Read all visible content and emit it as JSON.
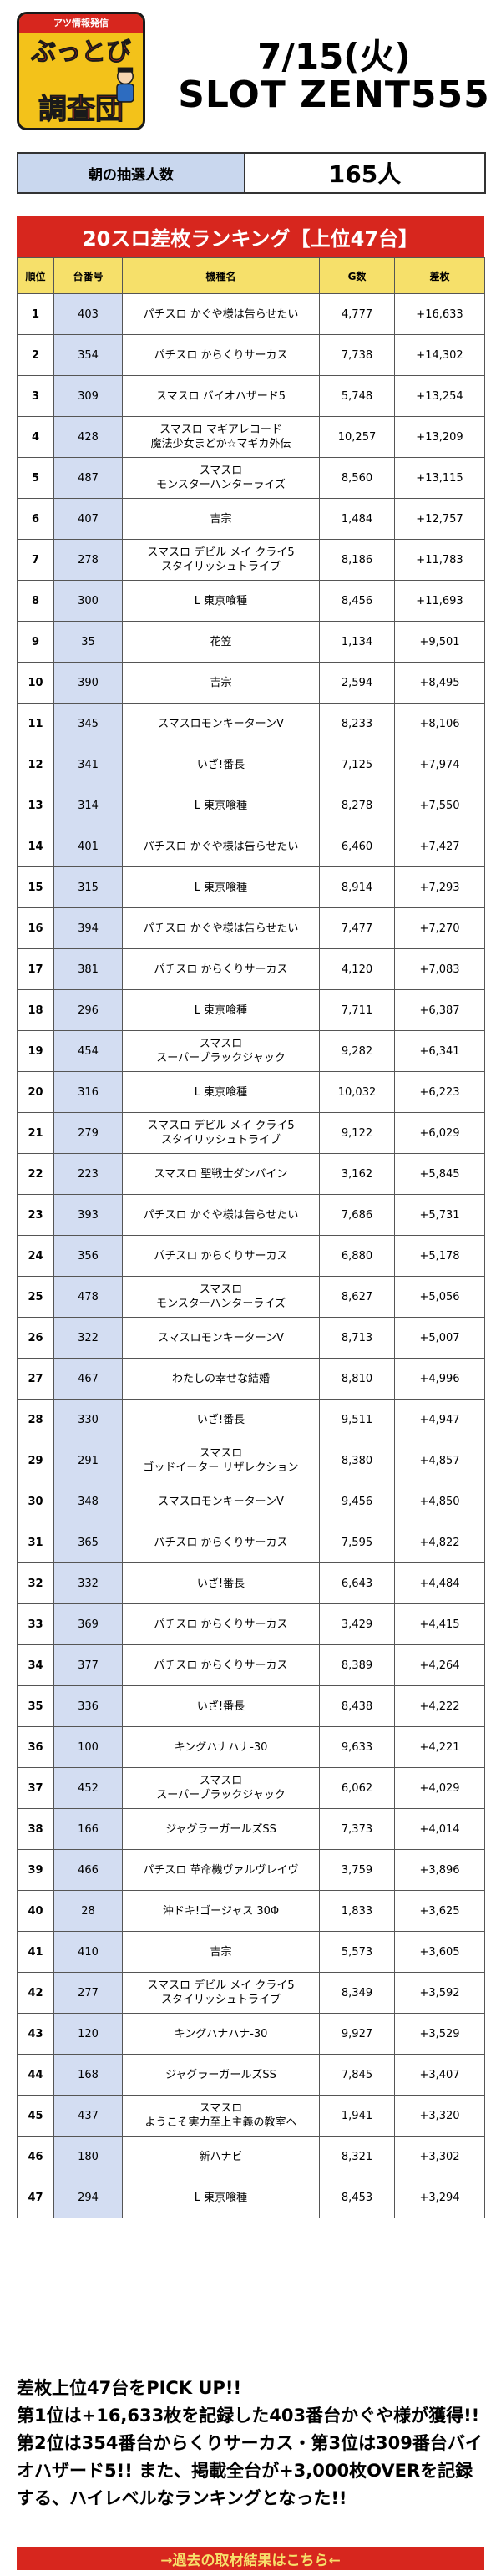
{
  "header": {
    "logo_top": "アツ情報発信",
    "logo_line1": "ぶっとび",
    "logo_line2": "調査団",
    "date": "7/15(火)",
    "store": "SLOT ZENT555"
  },
  "lottery": {
    "label": "朝の抽選人数",
    "value": "165人"
  },
  "ranking": {
    "title": "20スロ差枚ランキング【上位47台】",
    "columns": [
      "順位",
      "台番号",
      "機種名",
      "G数",
      "差枚"
    ],
    "rows": [
      {
        "rank": "1",
        "num": "403",
        "name": "パチスロ かぐや様は告らせたい",
        "g": "4,777",
        "diff": "+16,633"
      },
      {
        "rank": "2",
        "num": "354",
        "name": "パチスロ からくりサーカス",
        "g": "7,738",
        "diff": "+14,302"
      },
      {
        "rank": "3",
        "num": "309",
        "name": "スマスロ バイオハザード5",
        "g": "5,748",
        "diff": "+13,254"
      },
      {
        "rank": "4",
        "num": "428",
        "name": "スマスロ マギアレコード\n魔法少女まどか☆マギカ外伝",
        "g": "10,257",
        "diff": "+13,209"
      },
      {
        "rank": "5",
        "num": "487",
        "name": "スマスロ\nモンスターハンターライズ",
        "g": "8,560",
        "diff": "+13,115"
      },
      {
        "rank": "6",
        "num": "407",
        "name": "吉宗",
        "g": "1,484",
        "diff": "+12,757"
      },
      {
        "rank": "7",
        "num": "278",
        "name": "スマスロ デビル メイ クライ5\nスタイリッシュトライブ",
        "g": "8,186",
        "diff": "+11,783"
      },
      {
        "rank": "8",
        "num": "300",
        "name": "L 東京喰種",
        "g": "8,456",
        "diff": "+11,693"
      },
      {
        "rank": "9",
        "num": "35",
        "name": "花笠",
        "g": "1,134",
        "diff": "+9,501"
      },
      {
        "rank": "10",
        "num": "390",
        "name": "吉宗",
        "g": "2,594",
        "diff": "+8,495"
      },
      {
        "rank": "11",
        "num": "345",
        "name": "スマスロモンキーターンV",
        "g": "8,233",
        "diff": "+8,106"
      },
      {
        "rank": "12",
        "num": "341",
        "name": "いざ!番長",
        "g": "7,125",
        "diff": "+7,974"
      },
      {
        "rank": "13",
        "num": "314",
        "name": "L 東京喰種",
        "g": "8,278",
        "diff": "+7,550"
      },
      {
        "rank": "14",
        "num": "401",
        "name": "パチスロ かぐや様は告らせたい",
        "g": "6,460",
        "diff": "+7,427"
      },
      {
        "rank": "15",
        "num": "315",
        "name": "L 東京喰種",
        "g": "8,914",
        "diff": "+7,293"
      },
      {
        "rank": "16",
        "num": "394",
        "name": "パチスロ かぐや様は告らせたい",
        "g": "7,477",
        "diff": "+7,270"
      },
      {
        "rank": "17",
        "num": "381",
        "name": "パチスロ からくりサーカス",
        "g": "4,120",
        "diff": "+7,083"
      },
      {
        "rank": "18",
        "num": "296",
        "name": "L 東京喰種",
        "g": "7,711",
        "diff": "+6,387"
      },
      {
        "rank": "19",
        "num": "454",
        "name": "スマスロ\nスーパーブラックジャック",
        "g": "9,282",
        "diff": "+6,341"
      },
      {
        "rank": "20",
        "num": "316",
        "name": "L 東京喰種",
        "g": "10,032",
        "diff": "+6,223"
      },
      {
        "rank": "21",
        "num": "279",
        "name": "スマスロ デビル メイ クライ5\nスタイリッシュトライブ",
        "g": "9,122",
        "diff": "+6,029"
      },
      {
        "rank": "22",
        "num": "223",
        "name": "スマスロ 聖戦士ダンバイン",
        "g": "3,162",
        "diff": "+5,845"
      },
      {
        "rank": "23",
        "num": "393",
        "name": "パチスロ かぐや様は告らせたい",
        "g": "7,686",
        "diff": "+5,731"
      },
      {
        "rank": "24",
        "num": "356",
        "name": "パチスロ からくりサーカス",
        "g": "6,880",
        "diff": "+5,178"
      },
      {
        "rank": "25",
        "num": "478",
        "name": "スマスロ\nモンスターハンターライズ",
        "g": "8,627",
        "diff": "+5,056"
      },
      {
        "rank": "26",
        "num": "322",
        "name": "スマスロモンキーターンV",
        "g": "8,713",
        "diff": "+5,007"
      },
      {
        "rank": "27",
        "num": "467",
        "name": "わたしの幸せな結婚",
        "g": "8,810",
        "diff": "+4,996"
      },
      {
        "rank": "28",
        "num": "330",
        "name": "いざ!番長",
        "g": "9,511",
        "diff": "+4,947"
      },
      {
        "rank": "29",
        "num": "291",
        "name": "スマスロ\nゴッドイーター リザレクション",
        "g": "8,380",
        "diff": "+4,857"
      },
      {
        "rank": "30",
        "num": "348",
        "name": "スマスロモンキーターンV",
        "g": "9,456",
        "diff": "+4,850"
      },
      {
        "rank": "31",
        "num": "365",
        "name": "パチスロ からくりサーカス",
        "g": "7,595",
        "diff": "+4,822"
      },
      {
        "rank": "32",
        "num": "332",
        "name": "いざ!番長",
        "g": "6,643",
        "diff": "+4,484"
      },
      {
        "rank": "33",
        "num": "369",
        "name": "パチスロ からくりサーカス",
        "g": "3,429",
        "diff": "+4,415"
      },
      {
        "rank": "34",
        "num": "377",
        "name": "パチスロ からくりサーカス",
        "g": "8,389",
        "diff": "+4,264"
      },
      {
        "rank": "35",
        "num": "336",
        "name": "いざ!番長",
        "g": "8,438",
        "diff": "+4,222"
      },
      {
        "rank": "36",
        "num": "100",
        "name": "キングハナハナ-30",
        "g": "9,633",
        "diff": "+4,221"
      },
      {
        "rank": "37",
        "num": "452",
        "name": "スマスロ\nスーパーブラックジャック",
        "g": "6,062",
        "diff": "+4,029"
      },
      {
        "rank": "38",
        "num": "166",
        "name": "ジャグラーガールズSS",
        "g": "7,373",
        "diff": "+4,014"
      },
      {
        "rank": "39",
        "num": "466",
        "name": "パチスロ 革命機ヴァルヴレイヴ",
        "g": "3,759",
        "diff": "+3,896"
      },
      {
        "rank": "40",
        "num": "28",
        "name": "沖ドキ!ゴージャス 30Φ",
        "g": "1,833",
        "diff": "+3,625"
      },
      {
        "rank": "41",
        "num": "410",
        "name": "吉宗",
        "g": "5,573",
        "diff": "+3,605"
      },
      {
        "rank": "42",
        "num": "277",
        "name": "スマスロ デビル メイ クライ5\nスタイリッシュトライブ",
        "g": "8,349",
        "diff": "+3,592"
      },
      {
        "rank": "43",
        "num": "120",
        "name": "キングハナハナ-30",
        "g": "9,927",
        "diff": "+3,529"
      },
      {
        "rank": "44",
        "num": "168",
        "name": "ジャグラーガールズSS",
        "g": "7,845",
        "diff": "+3,407"
      },
      {
        "rank": "45",
        "num": "437",
        "name": "スマスロ\nようこそ実力至上主義の教室へ",
        "g": "1,941",
        "diff": "+3,320"
      },
      {
        "rank": "46",
        "num": "180",
        "name": "新ハナビ",
        "g": "8,321",
        "diff": "+3,302"
      },
      {
        "rank": "47",
        "num": "294",
        "name": "L 東京喰種",
        "g": "8,453",
        "diff": "+3,294"
      }
    ]
  },
  "summary": {
    "text": "差枚上位47台をPICK UP!!\n第1位は+16,633枚を記録した403番台かぐや様が獲得!! 第2位は354番台からくりサーカス・第3位は309番台バイオハザード5!! また、掲載全台が+3,000枚OVERを記録する、ハイレベルなランキングとなった!!"
  },
  "footer": {
    "link_label": "→過去の取材結果はこちら←"
  },
  "colors": {
    "accent_red": "#d7261e",
    "header_yellow": "#f6e06a",
    "number_blue": "#d3ddf2"
  }
}
